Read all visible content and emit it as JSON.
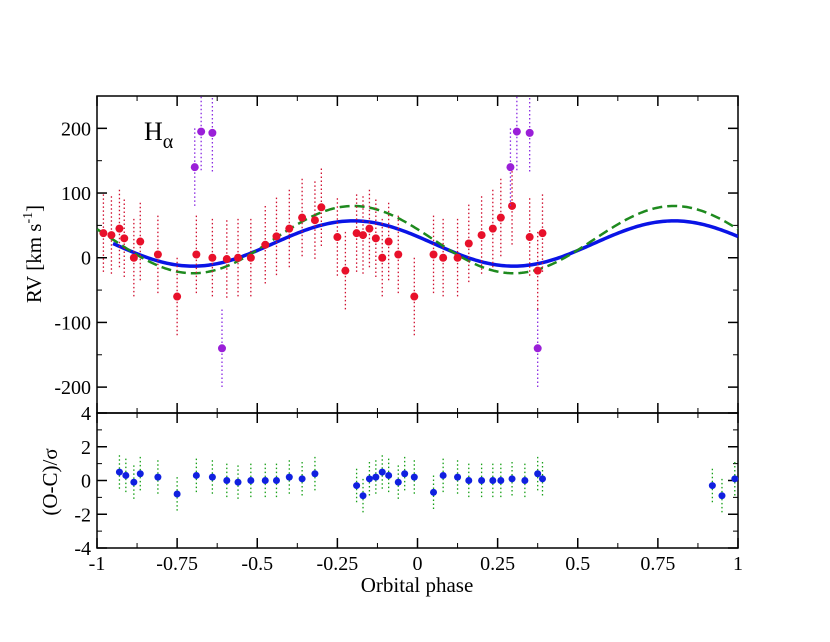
{
  "colors": {
    "model_solid": "#0a14e6",
    "model_dashed": "#1e8a1e",
    "obs_point": "#e8102a",
    "obs_err": "#d01030",
    "outlier_point": "#9a1fd8",
    "outlier_err": "#8a2be2",
    "resid_point": "#1020e0",
    "resid_err": "#18a018"
  },
  "chart_data": [
    {
      "type": "scatter",
      "panel": "top",
      "title": "",
      "label_main": "H",
      "label_sub": "α",
      "xlabel": "Orbital phase",
      "ylabel": "RV [km s",
      "ylabel_sup": "-1",
      "ylabel_close": "]",
      "xlim": [
        -1,
        1
      ],
      "ylim": [
        -240,
        250
      ],
      "yticks": [
        -200,
        -100,
        0,
        100,
        200
      ],
      "yticklabels": [
        "-200",
        "-100",
        "0",
        "100",
        "200"
      ],
      "models": [
        {
          "name": "solid fit",
          "style": "solid",
          "gamma": 22,
          "K": 35,
          "phase_of_max": -0.2,
          "x_range": [
            -0.95,
            1
          ]
        },
        {
          "name": "dashed fit",
          "style": "dashed",
          "gamma": 28,
          "K": 52,
          "phase_of_max": -0.2,
          "x_range": [
            -1,
            1
          ]
        }
      ],
      "series": [
        {
          "name": "observations",
          "err": 60,
          "points": [
            [
              -0.98,
              38
            ],
            [
              -0.955,
              35
            ],
            [
              -0.93,
              45
            ],
            [
              -0.915,
              30
            ],
            [
              -0.885,
              0
            ],
            [
              -0.865,
              25
            ],
            [
              -0.81,
              5
            ],
            [
              -0.75,
              -60
            ],
            [
              -0.69,
              5
            ],
            [
              -0.64,
              0
            ],
            [
              -0.595,
              -2
            ],
            [
              -0.56,
              0
            ],
            [
              -0.52,
              0
            ],
            [
              -0.475,
              20
            ],
            [
              -0.44,
              33
            ],
            [
              -0.4,
              45
            ],
            [
              -0.36,
              62
            ],
            [
              -0.32,
              58
            ],
            [
              -0.3,
              78
            ],
            [
              -0.25,
              32
            ],
            [
              -0.225,
              -20
            ],
            [
              -0.19,
              38
            ],
            [
              -0.17,
              35
            ],
            [
              -0.15,
              45
            ],
            [
              -0.13,
              30
            ],
            [
              -0.11,
              0
            ],
            [
              -0.09,
              25
            ],
            [
              -0.06,
              5
            ],
            [
              -0.01,
              -60
            ],
            [
              0.05,
              5
            ],
            [
              0.08,
              0
            ],
            [
              0.125,
              0
            ],
            [
              0.16,
              22
            ],
            [
              0.2,
              35
            ],
            [
              0.235,
              45
            ],
            [
              0.26,
              62
            ],
            [
              0.295,
              80
            ],
            [
              0.35,
              32
            ],
            [
              0.375,
              -20
            ],
            [
              0.39,
              38
            ]
          ]
        },
        {
          "name": "outliers",
          "err": 60,
          "points": [
            [
              -0.695,
              140
            ],
            [
              -0.675,
              195
            ],
            [
              -0.64,
              193
            ],
            [
              -0.61,
              -140
            ],
            [
              0.29,
              140
            ],
            [
              0.31,
              195
            ],
            [
              0.35,
              193
            ],
            [
              0.375,
              -140
            ]
          ]
        }
      ]
    },
    {
      "type": "scatter",
      "panel": "bottom",
      "title": "",
      "xlabel": "Orbital phase",
      "ylabel": "(O-C)/σ",
      "xlim": [
        -1,
        1
      ],
      "ylim": [
        -4,
        4
      ],
      "xticks": [
        -1,
        -0.75,
        -0.5,
        -0.25,
        0,
        0.25,
        0.5,
        0.75,
        1
      ],
      "xticklabels": [
        "-1",
        "-0.75",
        "-0.5",
        "-0.25",
        "0",
        "0.25",
        "0.5",
        "0.75",
        "1"
      ],
      "yticks": [
        -4,
        -2,
        0,
        2,
        4
      ],
      "yticklabels": [
        "-4",
        "-2",
        "0",
        "2",
        "4"
      ],
      "series": [
        {
          "name": "residuals",
          "err": 1,
          "points": [
            [
              -0.93,
              0.5
            ],
            [
              -0.91,
              0.3
            ],
            [
              -0.885,
              -0.1
            ],
            [
              -0.865,
              0.4
            ],
            [
              -0.81,
              0.2
            ],
            [
              -0.75,
              -0.8
            ],
            [
              -0.69,
              0.3
            ],
            [
              -0.64,
              0.2
            ],
            [
              -0.595,
              0.0
            ],
            [
              -0.56,
              -0.1
            ],
            [
              -0.52,
              0.0
            ],
            [
              -0.475,
              0.0
            ],
            [
              -0.44,
              0.0
            ],
            [
              -0.4,
              0.2
            ],
            [
              -0.36,
              0.1
            ],
            [
              -0.32,
              0.4
            ],
            [
              -0.19,
              -0.3
            ],
            [
              -0.17,
              -0.9
            ],
            [
              -0.15,
              0.1
            ],
            [
              -0.13,
              0.2
            ],
            [
              -0.11,
              0.5
            ],
            [
              -0.09,
              0.3
            ],
            [
              -0.06,
              -0.1
            ],
            [
              -0.04,
              0.4
            ],
            [
              -0.01,
              0.2
            ],
            [
              0.05,
              -0.7
            ],
            [
              0.08,
              0.3
            ],
            [
              0.125,
              0.2
            ],
            [
              0.16,
              0.0
            ],
            [
              0.2,
              0.0
            ],
            [
              0.235,
              0.0
            ],
            [
              0.26,
              0.0
            ],
            [
              0.295,
              0.1
            ],
            [
              0.335,
              0.0
            ],
            [
              0.375,
              0.4
            ],
            [
              0.39,
              0.1
            ],
            [
              0.92,
              -0.3
            ],
            [
              0.95,
              -0.9
            ],
            [
              0.99,
              0.1
            ]
          ]
        }
      ]
    }
  ]
}
